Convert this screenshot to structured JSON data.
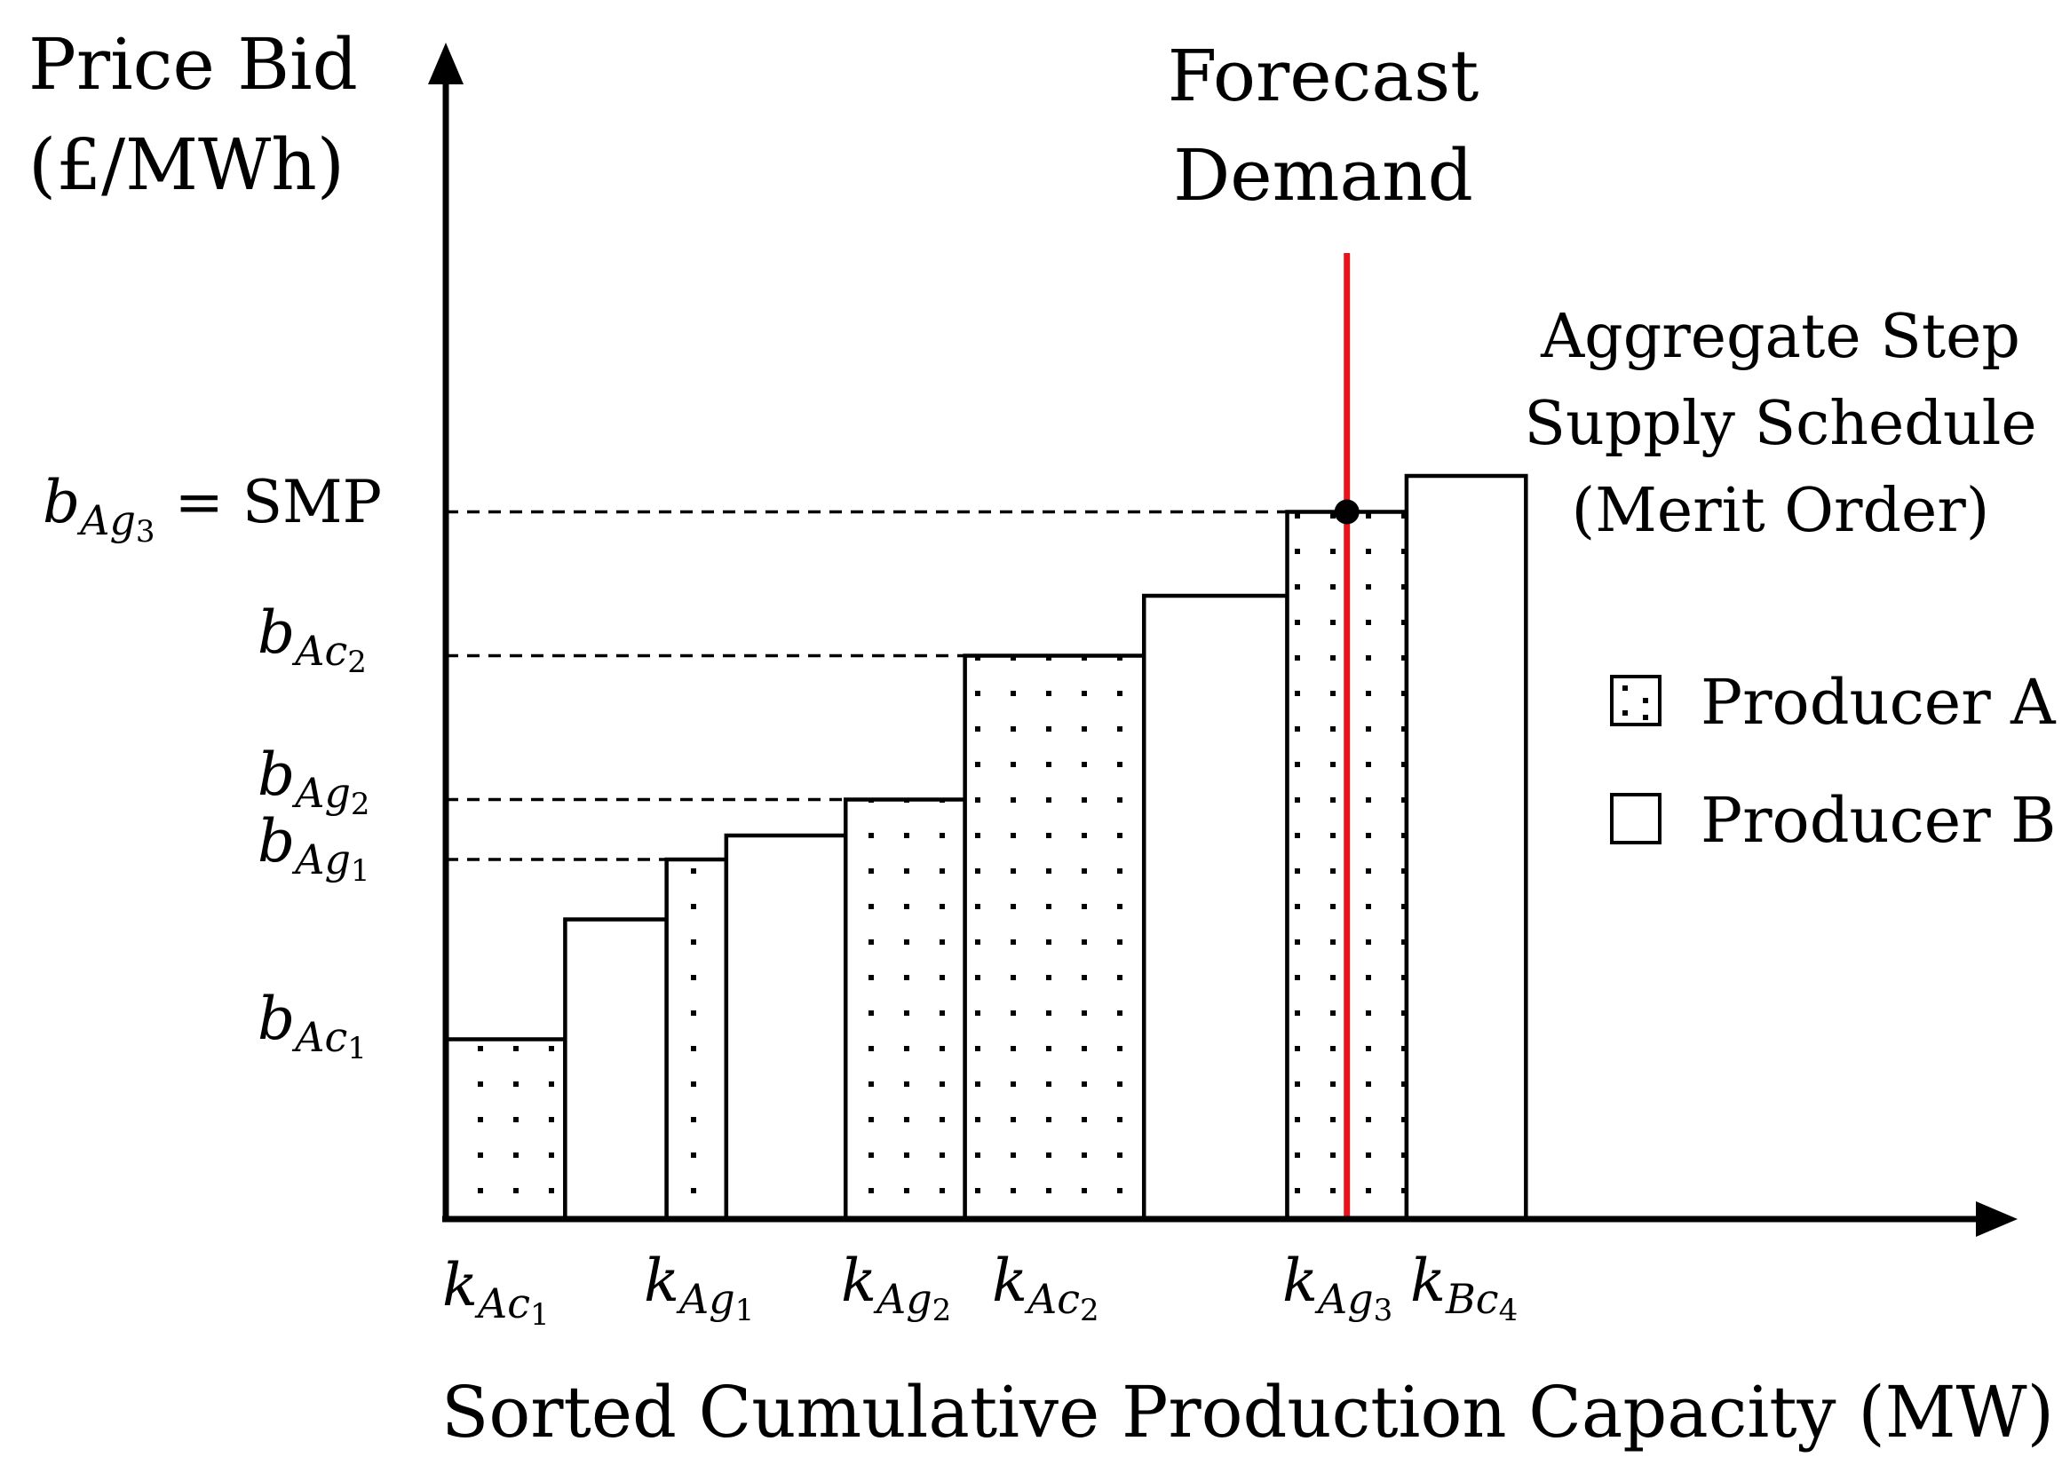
{
  "axes": {
    "y_label_line1": "Price Bid",
    "y_label_line2": "(£/MWh)",
    "x_label": "Sorted Cumulative Production Capacity (MW)"
  },
  "demand": {
    "label_line1": "Forecast",
    "label_line2": "Demand",
    "color": "#e8141c"
  },
  "schedule": {
    "line1": "Aggregate Step",
    "line2": "Supply Schedule",
    "line3": "(Merit Order)"
  },
  "legend": {
    "producer_a": "Producer A",
    "producer_b": "Producer B"
  },
  "price_labels": {
    "smp": {
      "sym": "b",
      "sub": "Ag",
      "subsub": "3",
      "suffix": "= SMP"
    },
    "b_ac2": {
      "sym": "b",
      "sub": "Ac",
      "subsub": "2"
    },
    "b_ag2": {
      "sym": "b",
      "sub": "Ag",
      "subsub": "2"
    },
    "b_ag1": {
      "sym": "b",
      "sub": "Ag",
      "subsub": "1"
    },
    "b_ac1": {
      "sym": "b",
      "sub": "Ac",
      "subsub": "1"
    }
  },
  "capacity_labels": {
    "k_ac1": {
      "sym": "k",
      "sub": "Ac",
      "subsub": "1"
    },
    "k_ag1": {
      "sym": "k",
      "sub": "Ag",
      "subsub": "1"
    },
    "k_ag2": {
      "sym": "k",
      "sub": "Ag",
      "subsub": "2"
    },
    "k_ac2": {
      "sym": "k",
      "sub": "Ac",
      "subsub": "2"
    },
    "k_ag3": {
      "sym": "k",
      "sub": "Ag",
      "subsub": "3"
    },
    "k_bc4": {
      "sym": "k",
      "sub": "Bc",
      "subsub": "4"
    }
  },
  "chart_data": {
    "type": "bar",
    "title": "Aggregate Step Supply Schedule (Merit Order)",
    "xlabel": "Sorted Cumulative Production Capacity (MW)",
    "ylabel": "Price Bid (£/MWh)",
    "series": [
      {
        "name": "Producer A",
        "pattern": "dotted"
      },
      {
        "name": "Producer B",
        "pattern": "plain"
      }
    ],
    "steps": [
      {
        "producer": "A",
        "capacity": 2.0,
        "price": 1.5
      },
      {
        "producer": "B",
        "capacity": 1.7,
        "price": 2.5
      },
      {
        "producer": "A",
        "capacity": 1.0,
        "price": 3.0
      },
      {
        "producer": "B",
        "capacity": 2.0,
        "price": 3.2
      },
      {
        "producer": "A",
        "capacity": 2.0,
        "price": 3.5
      },
      {
        "producer": "A",
        "capacity": 3.0,
        "price": 4.7
      },
      {
        "producer": "B",
        "capacity": 2.4,
        "price": 5.2
      },
      {
        "producer": "A",
        "capacity": 2.0,
        "price": 5.9
      },
      {
        "producer": "B",
        "capacity": 2.0,
        "price": 6.2
      }
    ],
    "forecast_demand": 15.1,
    "smp": 5.9,
    "xlim": [
      0,
      26.5
    ],
    "ylim": [
      0,
      10
    ]
  }
}
